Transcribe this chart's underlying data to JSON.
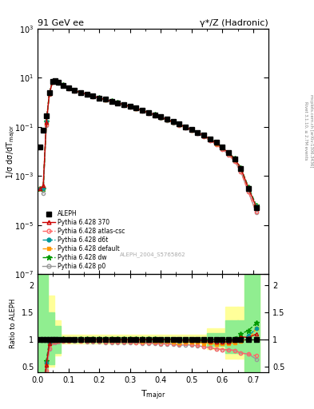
{
  "title_left": "91 GeV ee",
  "title_right": "γ*/Z (Hadronic)",
  "ylabel_main": "1/σ dσ/dT$_\\mathrm{major}$",
  "ylabel_ratio": "Ratio to ALEPH",
  "xlabel": "T$_\\mathrm{major}$",
  "watermark": "ALEPH_2004_S5765862",
  "rivet_text": "Rivet 3.1.10, ≥ 2.7M events",
  "arxiv_text": "mcplots.cern.ch [arXiv:1306.3436]",
  "ylim_main": [
    1e-07,
    1000
  ],
  "ylim_ratio": [
    0.4,
    2.2
  ],
  "xlim": [
    0.0,
    0.75
  ],
  "aleph_x": [
    0.008,
    0.018,
    0.028,
    0.038,
    0.048,
    0.058,
    0.068,
    0.082,
    0.1,
    0.12,
    0.14,
    0.16,
    0.18,
    0.2,
    0.22,
    0.24,
    0.26,
    0.28,
    0.3,
    0.32,
    0.34,
    0.36,
    0.38,
    0.4,
    0.42,
    0.44,
    0.46,
    0.48,
    0.5,
    0.52,
    0.54,
    0.56,
    0.58,
    0.6,
    0.62,
    0.64,
    0.66,
    0.685,
    0.71
  ],
  "aleph_y": [
    0.015,
    0.07,
    0.28,
    2.5,
    7.0,
    7.5,
    6.5,
    5.0,
    3.8,
    3.0,
    2.5,
    2.1,
    1.8,
    1.5,
    1.3,
    1.1,
    0.95,
    0.8,
    0.68,
    0.57,
    0.47,
    0.38,
    0.31,
    0.25,
    0.2,
    0.16,
    0.13,
    0.1,
    0.078,
    0.06,
    0.045,
    0.033,
    0.023,
    0.015,
    0.009,
    0.005,
    0.002,
    0.0003,
    5e-05
  ],
  "mc_370_y": [
    0.0003,
    0.0004,
    0.15,
    2.3,
    6.95,
    7.45,
    6.45,
    5.0,
    3.78,
    3.0,
    2.5,
    2.1,
    1.8,
    1.5,
    1.3,
    1.1,
    0.95,
    0.8,
    0.68,
    0.57,
    0.47,
    0.38,
    0.31,
    0.25,
    0.2,
    0.16,
    0.128,
    0.099,
    0.077,
    0.059,
    0.044,
    0.032,
    0.022,
    0.0143,
    0.0086,
    0.0049,
    0.0021,
    0.00031,
    5.5e-05
  ],
  "mc_atl_y": [
    0.0003,
    0.0003,
    0.12,
    2.1,
    6.7,
    7.2,
    6.3,
    4.88,
    3.7,
    2.94,
    2.44,
    2.04,
    1.74,
    1.45,
    1.25,
    1.05,
    0.905,
    0.765,
    0.645,
    0.54,
    0.443,
    0.358,
    0.29,
    0.233,
    0.186,
    0.148,
    0.118,
    0.092,
    0.071,
    0.054,
    0.039,
    0.028,
    0.019,
    0.0122,
    0.0073,
    0.004,
    0.0015,
    0.00022,
    3.5e-05
  ],
  "mc_d6t_y": [
    0.0003,
    0.0003,
    0.16,
    2.35,
    6.9,
    7.4,
    6.45,
    5.0,
    3.78,
    3.0,
    2.5,
    2.1,
    1.8,
    1.5,
    1.3,
    1.1,
    0.95,
    0.805,
    0.68,
    0.57,
    0.47,
    0.381,
    0.309,
    0.248,
    0.199,
    0.159,
    0.127,
    0.099,
    0.077,
    0.059,
    0.044,
    0.032,
    0.022,
    0.0143,
    0.0086,
    0.0049,
    0.002,
    0.00032,
    6e-05
  ],
  "mc_def_y": [
    0.0003,
    0.0003,
    0.155,
    2.32,
    6.85,
    7.35,
    6.42,
    4.97,
    3.76,
    2.98,
    2.48,
    2.08,
    1.78,
    1.48,
    1.28,
    1.08,
    0.93,
    0.79,
    0.668,
    0.558,
    0.458,
    0.372,
    0.302,
    0.242,
    0.193,
    0.154,
    0.123,
    0.096,
    0.074,
    0.057,
    0.042,
    0.031,
    0.021,
    0.0138,
    0.0083,
    0.0047,
    0.00195,
    0.0003,
    6e-05
  ],
  "mc_dw_y": [
    0.0003,
    0.0003,
    0.17,
    2.4,
    6.95,
    7.45,
    6.5,
    5.05,
    3.81,
    3.02,
    2.52,
    2.12,
    1.82,
    1.52,
    1.32,
    1.12,
    0.965,
    0.815,
    0.689,
    0.578,
    0.475,
    0.385,
    0.313,
    0.251,
    0.201,
    0.161,
    0.129,
    0.1,
    0.078,
    0.06,
    0.045,
    0.033,
    0.023,
    0.015,
    0.009,
    0.0051,
    0.0022,
    0.00035,
    6.5e-05
  ],
  "mc_p0_y": [
    0.0003,
    0.0002,
    0.11,
    2.05,
    6.6,
    7.1,
    6.2,
    4.83,
    3.67,
    2.91,
    2.41,
    2.01,
    1.72,
    1.43,
    1.23,
    1.04,
    0.895,
    0.757,
    0.638,
    0.534,
    0.438,
    0.354,
    0.286,
    0.229,
    0.183,
    0.146,
    0.116,
    0.09,
    0.07,
    0.053,
    0.039,
    0.028,
    0.019,
    0.0122,
    0.0073,
    0.004,
    0.0015,
    0.00022,
    3.2e-05
  ],
  "bg_green": "#90EE90",
  "bg_yellow": "#FFFF99",
  "colors": {
    "370": "#cc0000",
    "atlas": "#ff6666",
    "d6t": "#009999",
    "default": "#ff9900",
    "dw": "#009900",
    "p0": "#999999"
  }
}
